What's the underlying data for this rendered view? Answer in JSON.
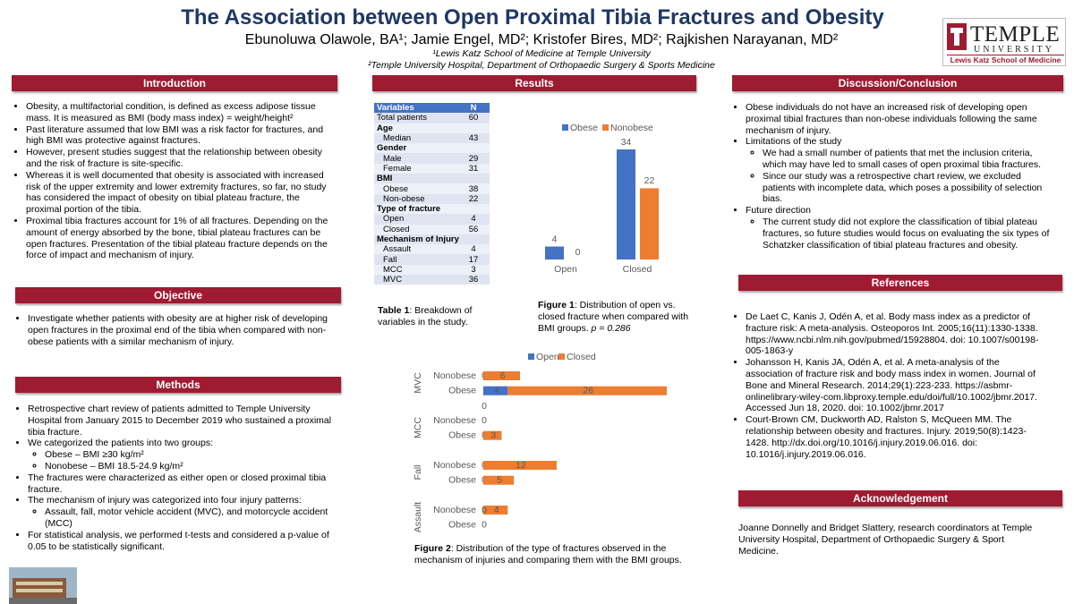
{
  "header": {
    "title": "The Association between Open Proximal Tibia Fractures and Obesity",
    "authors": "Ebunoluwa Olawole, BA¹; Jamie Engel, MD²; Kristofer Bires, MD²; Rajkishen Narayanan, MD²",
    "affiliations": [
      "¹Lewis Katz School of Medicine at Temple University",
      "²Temple University Hospital, Department of Orthopaedic Surgery & Sports Medicine"
    ]
  },
  "logo": {
    "name": "TEMPLE",
    "subtitle": "UNIVERSITY",
    "school": "Lewis Katz School of Medicine"
  },
  "introduction": {
    "heading": "Introduction",
    "items": [
      "Obesity, a multifactorial condition, is defined as excess adipose tissue mass. It is measured as BMI (body mass index) = weight/height²",
      "Past literature assumed that low BMI was a risk factor for fractures, and high BMI was protective against fractures.",
      "However, present studies suggest that the relationship between obesity and the risk of fracture is site-specific.",
      "Whereas it is well documented that obesity is associated with increased risk of the upper extremity and lower extremity fractures, so far, no study has considered the impact of obesity on tibial plateau fracture, the proximal portion of the tibia.",
      "Proximal tibia fractures account for 1% of all fractures. Depending on the amount of energy absorbed by the bone, tibial plateau fractures can be open fractures. Presentation of the tibial plateau fracture depends on the force of impact and mechanism of injury."
    ]
  },
  "objective": {
    "heading": "Objective",
    "items": [
      "Investigate whether patients with obesity are at higher risk of developing open fractures in the proximal end of the tibia when compared with non-obese patients with a similar mechanism of injury."
    ]
  },
  "methods": {
    "heading": "Methods",
    "items": [
      "Retrospective chart review of patients admitted to Temple University Hospital from January 2015 to December 2019 who sustained a proximal tibia fracture.",
      {
        "text": "We categorized the patients into two groups:",
        "sub": [
          "Obese – BMI ≥30 kg/m²",
          "Nonobese – BMI 18.5-24.9 kg/m²"
        ]
      },
      "The fractures were characterized as either open or closed proximal tibia fracture.",
      {
        "text": "The mechanism of injury was categorized into four injury patterns:",
        "sub": [
          "Assault, fall, motor vehicle accident (MVC), and motorcycle accident (MCC)"
        ]
      },
      "For statistical analysis, we performed t-tests and considered a p-value of 0.05 to be statistically significant."
    ]
  },
  "results": {
    "heading": "Results",
    "table": {
      "header": [
        "Variables",
        "N"
      ],
      "rows": [
        {
          "label": "Total patients",
          "n": 60
        },
        {
          "label": "Age"
        },
        {
          "label": "Median",
          "n": 43
        },
        {
          "label": "Gender"
        },
        {
          "label": "Male",
          "n": 29
        },
        {
          "label": "Female",
          "n": 31
        },
        {
          "label": "BMI"
        },
        {
          "label": "Obese",
          "n": 38
        },
        {
          "label": "Non-obese",
          "n": 22
        },
        {
          "label": "Type of fracture"
        },
        {
          "label": "Open",
          "n": 4
        },
        {
          "label": "Closed",
          "n": 56
        },
        {
          "label": "Mechanism of Injury"
        },
        {
          "label": "Assault",
          "n": 4
        },
        {
          "label": "Fall",
          "n": 17
        },
        {
          "label": "MCC",
          "n": 3
        },
        {
          "label": "MVC",
          "n": 36
        }
      ],
      "caption_label": "Table 1",
      "caption": ": Breakdown of variables in the study."
    }
  },
  "chart_data": [
    {
      "type": "bar",
      "categories": [
        "Open",
        "Closed"
      ],
      "series": [
        {
          "name": "Obese",
          "color": "#4472c4",
          "values": [
            4,
            34
          ]
        },
        {
          "name": "Nonobese",
          "color": "#ed7d31",
          "values": [
            0,
            22
          ]
        }
      ],
      "caption_label": "Figure 1",
      "caption": ": Distribution of open vs. closed fracture when compared with BMI groups. ",
      "caption_italic": "p = 0.286"
    },
    {
      "type": "bar",
      "orientation": "horizontal",
      "stacked": true,
      "groups": [
        {
          "name": "MVC",
          "categories": [
            "Nonobese",
            "Obese"
          ]
        },
        {
          "name": "MCC",
          "categories": [
            "Nonobese",
            "Obese"
          ]
        },
        {
          "name": "Fall",
          "categories": [
            "Nonobese",
            "Obese"
          ]
        },
        {
          "name": "Assault",
          "categories": [
            "Nonobese",
            "Obese"
          ]
        }
      ],
      "series": [
        {
          "name": "Open",
          "color": "#4472c4",
          "values": [
            0,
            4,
            0,
            0,
            0,
            0,
            0,
            0
          ]
        },
        {
          "name": "Closed",
          "color": "#ed7d31",
          "values": [
            6,
            26,
            0,
            3,
            12,
            5,
            4,
            0
          ]
        }
      ],
      "caption_label": "Figure 2",
      "caption": ": Distribution of the type of fractures observed in the mechanism of injuries and comparing them with the BMI groups."
    }
  ],
  "discussion": {
    "heading": "Discussion/Conclusion",
    "items": [
      "Obese individuals do not have an increased risk of developing open proximal tibial fractures than non-obese individuals following the same mechanism of injury.",
      {
        "text": "Limitations of the study",
        "sub": [
          "We had a small number of patients that met the inclusion criteria, which may have led to small cases of open proximal tibia fractures.",
          "Since our study was a retrospective chart review, we excluded patients with incomplete data, which poses a possibility of selection bias."
        ]
      },
      {
        "text": "Future direction",
        "sub": [
          "The current study did not explore the classification of tibial plateau fractures, so future studies would focus on evaluating the six types of Schatzker classification of tibial plateau fractures and obesity."
        ]
      }
    ]
  },
  "references": {
    "heading": "References",
    "items": [
      "De Laet C, Kanis J, Odén A, et al. Body mass index as a predictor of fracture risk: A meta-analysis. Osteoporos Int. 2005;16(11):1330-1338. https://www.ncbi.nlm.nih.gov/pubmed/15928804. doi: 10.1007/s00198-005-1863-y",
      "Johansson H, Kanis JA, Odén A, et al. A meta-analysis of the association of fracture risk and body mass index in women. Journal of Bone and Mineral Research. 2014;29(1):223-233. https://asbmr-onlinelibrary-wiley-com.libproxy.temple.edu/doi/full/10.1002/jbmr.2017. Accessed Jun 18, 2020. doi: 10.1002/jbmr.2017",
      "Court-Brown CM, Duckworth AD, Ralston S, McQueen MM. The relationship between obesity and fractures. Injury. 2019;50(8):1423-1428. http://dx.doi.org/10.1016/j.injury.2019.06.016. doi: 10.1016/j.injury.2019.06.016."
    ]
  },
  "acknowledgement": {
    "heading": "Acknowledgement",
    "text": "Joanne Donnelly and Bridget Slattery, research coordinators at Temple University Hospital, Department of Orthopaedic Surgery & Sport Medicine."
  }
}
